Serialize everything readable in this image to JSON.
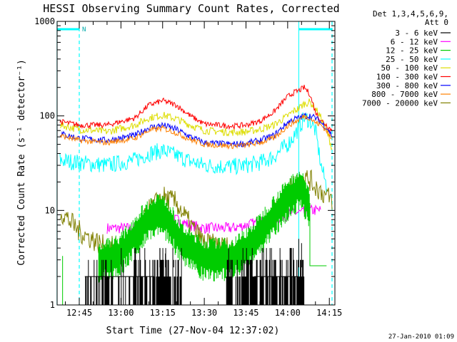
{
  "chart_data": {
    "type": "line",
    "title": "HESSI Observing Summary Count Rates, Corrected",
    "xlabel": "Start Time (27-Nov-04 12:37:02)",
    "ylabel": "Corrected Count Rate (s⁻¹ detector⁻¹)",
    "yscale": "log",
    "ylim": [
      1,
      1000
    ],
    "xlim": [
      "12:37:02",
      "14:17"
    ],
    "x_tick_labels": [
      "12:45",
      "13:00",
      "13:15",
      "13:30",
      "13:45",
      "14:00",
      "14:15"
    ],
    "y_tick_labels": [
      "1",
      "10",
      "100",
      "1000"
    ],
    "legend_header": [
      "Det 1,3,4,5,6,9,",
      "Att 0"
    ],
    "legend_position": "right",
    "footer_date": "27-Jan-2010 01:09",
    "night_intervals": [
      [
        "12:37",
        "12:45"
      ],
      [
        "14:04",
        "14:17"
      ]
    ],
    "saa_label": "N",
    "x_hours": [
      "12:38",
      "12:45",
      "12:55",
      "13:05",
      "13:10",
      "13:15",
      "13:20",
      "13:25",
      "13:30",
      "13:40",
      "13:45",
      "13:50",
      "13:55",
      "14:00",
      "14:02",
      "14:04",
      "14:06",
      "14:08",
      "14:10",
      "14:12",
      "14:14",
      "14:16"
    ],
    "series": [
      {
        "name": "3 - 6 keV",
        "color": "#000000",
        "values": [
          null,
          null,
          null,
          null,
          null,
          null,
          null,
          null,
          null,
          null,
          null,
          null,
          null,
          null,
          null,
          null,
          null,
          null,
          null,
          null,
          null,
          null
        ]
      },
      {
        "name": "6 - 12 keV",
        "color": "#ff00ff",
        "values": [
          null,
          null,
          6.5,
          6.5,
          7,
          7.5,
          8,
          7,
          6.5,
          6.5,
          7,
          7.5,
          8,
          9,
          9.5,
          9.5,
          9.5,
          10,
          10,
          10,
          null,
          null
        ]
      },
      {
        "name": "12 - 25 keV",
        "color": "#00cc00",
        "values": [
          null,
          null,
          null,
          null,
          null,
          null,
          null,
          null,
          null,
          null,
          null,
          null,
          null,
          null,
          null,
          null,
          null,
          null,
          null,
          null,
          null,
          null
        ]
      },
      {
        "name": "25 - 50 keV",
        "color": "#00ffff",
        "values": [
          34,
          32,
          30,
          34,
          40,
          43,
          38,
          33,
          30,
          29,
          30,
          32,
          37,
          50,
          60,
          75,
          95,
          90,
          70,
          30,
          18,
          null
        ]
      },
      {
        "name": "50 - 100 keV",
        "color": "#dddd00",
        "values": [
          80,
          72,
          68,
          80,
          95,
          102,
          93,
          80,
          70,
          67,
          68,
          72,
          80,
          100,
          112,
          120,
          135,
          140,
          120,
          95,
          70,
          45
        ]
      },
      {
        "name": "100 - 300 keV",
        "color": "#ff0000",
        "values": [
          87,
          80,
          80,
          95,
          130,
          145,
          130,
          100,
          82,
          78,
          80,
          88,
          110,
          160,
          175,
          185,
          200,
          170,
          110,
          90,
          80,
          70
        ]
      },
      {
        "name": "300 - 800 keV",
        "color": "#0000ff",
        "values": [
          65,
          58,
          55,
          62,
          75,
          80,
          72,
          60,
          52,
          50,
          51,
          55,
          62,
          85,
          92,
          95,
          100,
          100,
          95,
          85,
          75,
          62
        ]
      },
      {
        "name": "800 - 7000 keV",
        "color": "#ff8000",
        "values": [
          62,
          55,
          52,
          58,
          70,
          74,
          66,
          56,
          50,
          48,
          49,
          52,
          58,
          78,
          85,
          90,
          100,
          95,
          85,
          80,
          70,
          55
        ]
      },
      {
        "name": "7000 - 20000 keV",
        "color": "#808000",
        "values": [
          10,
          6,
          4,
          4.5,
          10,
          14,
          12,
          7,
          4.5,
          4,
          4,
          5.5,
          9,
          16,
          19,
          21,
          22,
          21,
          18,
          16,
          14,
          13
        ]
      }
    ]
  }
}
